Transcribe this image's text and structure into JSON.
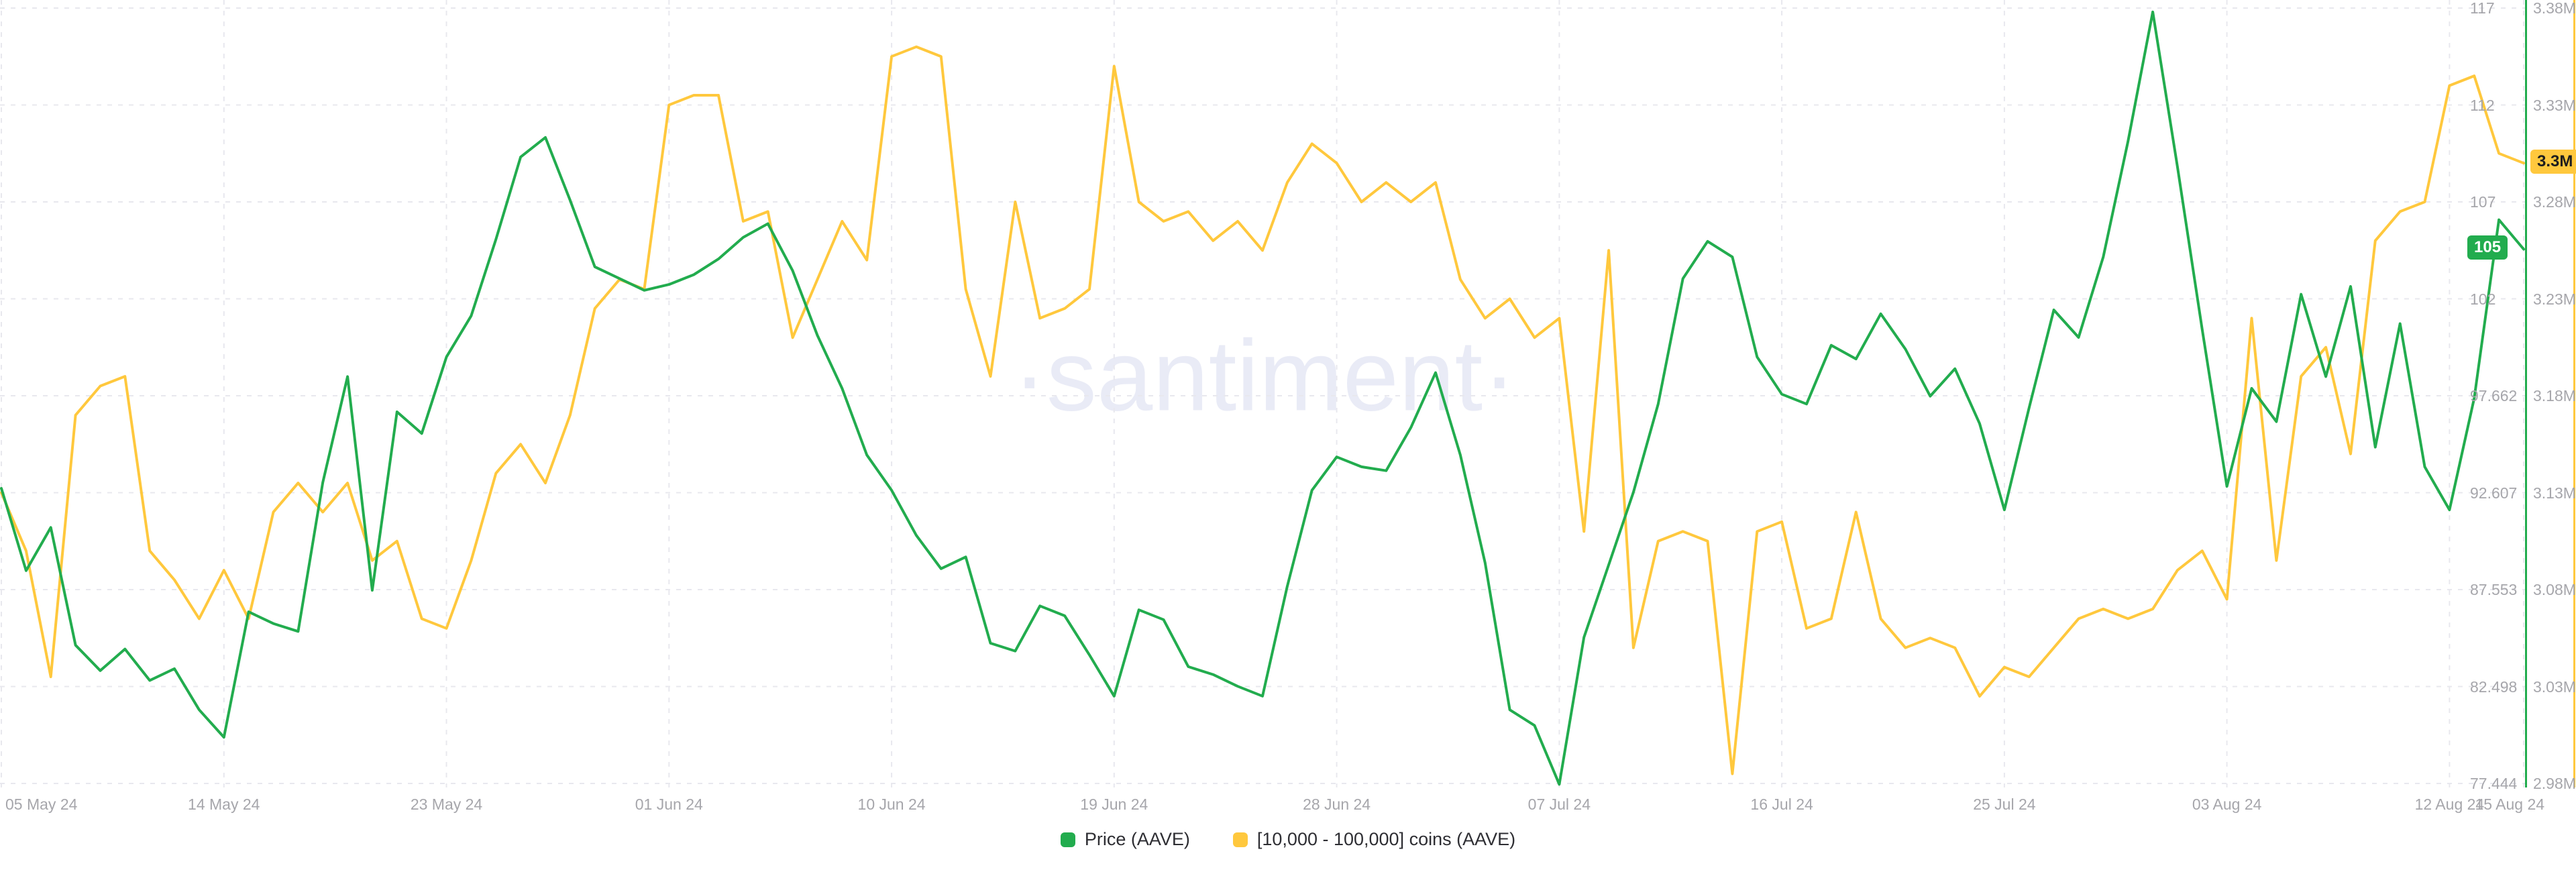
{
  "watermark": "·santiment·",
  "axes": {
    "price": {
      "badge": "105"
    },
    "supply": {
      "badge": "3.3M"
    }
  },
  "chart_data": {
    "type": "line",
    "title": "",
    "x_start": "2024-05-05",
    "x_end": "2024-08-15",
    "x_interval": "1d",
    "x_tick_labels": [
      "05 May 24",
      "14 May 24",
      "23 May 24",
      "01 Jun 24",
      "10 Jun 24",
      "19 Jun 24",
      "28 Jun 24",
      "07 Jul 24",
      "16 Jul 24",
      "25 Jul 24",
      "03 Aug 24",
      "12 Aug 24",
      "15 Aug 24"
    ],
    "x_tick_day_indices": [
      0,
      9,
      18,
      27,
      36,
      45,
      54,
      63,
      72,
      81,
      90,
      99,
      102
    ],
    "grid": "dashed",
    "legend_position": "bottom",
    "y_axes": {
      "price": {
        "side": "right-inner",
        "min": 77.444,
        "max": 117,
        "ticks": [
          "117",
          "112",
          "107",
          "102",
          "97.662",
          "92.607",
          "87.553",
          "82.498",
          "77.444"
        ],
        "color": "#22ac4e"
      },
      "supply": {
        "side": "right-outer",
        "min": 2.98,
        "max": 3.38,
        "unit": "M",
        "ticks": [
          "3.38M",
          "3.33M",
          "3.28M",
          "3.23M",
          "3.18M",
          "3.13M",
          "3.08M",
          "3.03M",
          "2.98M"
        ],
        "color": "#ffc83d"
      }
    },
    "series": [
      {
        "name": "Price (AAVE)",
        "axis": "price",
        "color": "#22ac4e",
        "unit": "USD",
        "last_value_badge": "105",
        "values": [
          92.5,
          88.3,
          90.5,
          84.5,
          83.2,
          84.3,
          82.7,
          83.3,
          81.2,
          79.8,
          86.2,
          85.6,
          85.2,
          92.8,
          98.2,
          87.3,
          96.4,
          95.3,
          99.2,
          101.3,
          105.2,
          109.4,
          110.4,
          107.2,
          103.8,
          103.2,
          102.6,
          102.9,
          103.4,
          104.2,
          105.3,
          106,
          103.6,
          100.3,
          97.6,
          94.2,
          92.4,
          90.1,
          88.4,
          89,
          84.6,
          84.2,
          86.5,
          86,
          84,
          81.9,
          86.3,
          85.8,
          83.4,
          83,
          82.4,
          81.9,
          87.5,
          92.4,
          94.1,
          93.6,
          93.4,
          95.6,
          98.4,
          94.2,
          88.7,
          81.2,
          80.4,
          77.4,
          84.9,
          88.6,
          92.3,
          96.8,
          103.2,
          105.1,
          104.3,
          99.2,
          97.3,
          96.8,
          99.8,
          99.1,
          101.4,
          99.6,
          97.2,
          98.6,
          95.8,
          91.4,
          96.6,
          101.6,
          100.2,
          104.3,
          110.2,
          116.8,
          108.9,
          100.6,
          92.6,
          97.6,
          95.9,
          102.4,
          98.2,
          102.8,
          94.6,
          100.9,
          93.6,
          91.4,
          97.1,
          106.2,
          104.7
        ]
      },
      {
        "name": "[10,000 - 100,000] coins (AAVE)",
        "axis": "supply",
        "color": "#ffc83d",
        "unit": "M AAVE",
        "last_value_badge": "3.3M",
        "values": [
          3.13,
          3.1,
          3.035,
          3.17,
          3.185,
          3.19,
          3.1,
          3.085,
          3.065,
          3.09,
          3.065,
          3.12,
          3.135,
          3.12,
          3.135,
          3.095,
          3.105,
          3.065,
          3.06,
          3.095,
          3.14,
          3.155,
          3.135,
          3.17,
          3.225,
          3.24,
          3.235,
          3.33,
          3.335,
          3.335,
          3.27,
          3.275,
          3.21,
          3.24,
          3.27,
          3.25,
          3.355,
          3.36,
          3.355,
          3.235,
          3.19,
          3.28,
          3.22,
          3.225,
          3.235,
          3.35,
          3.28,
          3.27,
          3.275,
          3.26,
          3.27,
          3.255,
          3.29,
          3.31,
          3.3,
          3.28,
          3.29,
          3.28,
          3.29,
          3.24,
          3.22,
          3.23,
          3.21,
          3.22,
          3.11,
          3.255,
          3.05,
          3.105,
          3.11,
          3.105,
          2.985,
          3.11,
          3.115,
          3.06,
          3.065,
          3.12,
          3.065,
          3.05,
          3.055,
          3.05,
          3.025,
          3.04,
          3.035,
          3.05,
          3.065,
          3.07,
          3.065,
          3.07,
          3.09,
          3.1,
          3.075,
          3.22,
          3.095,
          3.19,
          3.205,
          3.15,
          3.26,
          3.275,
          3.28,
          3.34,
          3.345,
          3.305,
          3.3
        ]
      }
    ]
  }
}
